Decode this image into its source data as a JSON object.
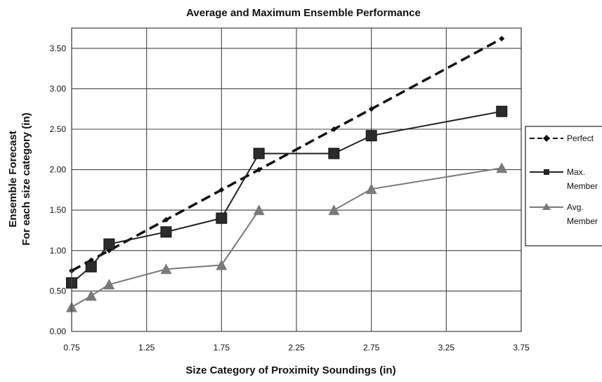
{
  "chart_data": {
    "type": "line",
    "title": "Average and Maximum Ensemble Performance",
    "xlabel": "Size Category of Proximity Soundings (in)",
    "ylabel_line1": "Ensemble Forecast",
    "ylabel_line2": "For each size category (in)",
    "xlim": [
      0.75,
      3.75
    ],
    "ylim": [
      0.0,
      3.75
    ],
    "x_ticks": [
      "0.75",
      "1.25",
      "1.75",
      "2.25",
      "2.75",
      "3.25",
      "3.75"
    ],
    "y_ticks": [
      "0.00",
      "0.50",
      "1.00",
      "1.50",
      "2.00",
      "2.50",
      "3.00",
      "3.50"
    ],
    "grid": true,
    "legend_position": "right",
    "series": [
      {
        "name": "Perfect",
        "style": "dashed",
        "marker": "diamond",
        "color": "#111111",
        "x": [
          0.75,
          0.88,
          1.0,
          1.38,
          1.75,
          2.0,
          2.5,
          2.75,
          3.62
        ],
        "y": [
          0.75,
          0.88,
          1.0,
          1.38,
          1.75,
          2.0,
          2.5,
          2.75,
          3.62
        ]
      },
      {
        "name_line1": "Max.",
        "name_line2": "Member",
        "style": "solid",
        "marker": "square",
        "color": "#222222",
        "x": [
          0.75,
          0.88,
          1.0,
          1.38,
          1.75,
          2.0,
          2.5,
          2.75,
          3.62
        ],
        "y": [
          0.6,
          0.8,
          1.08,
          1.23,
          1.4,
          2.2,
          2.2,
          2.42,
          2.72
        ]
      },
      {
        "name_line1": "Avg.",
        "name_line2": "Member",
        "style": "solid",
        "marker": "triangle",
        "color": "#7a7a7a",
        "x": [
          0.75,
          0.88,
          1.0,
          1.38,
          1.75,
          2.0,
          2.5,
          2.75,
          3.62
        ],
        "y": [
          0.3,
          0.44,
          0.58,
          0.77,
          0.82,
          1.5,
          1.5,
          1.76,
          2.02
        ]
      }
    ]
  }
}
